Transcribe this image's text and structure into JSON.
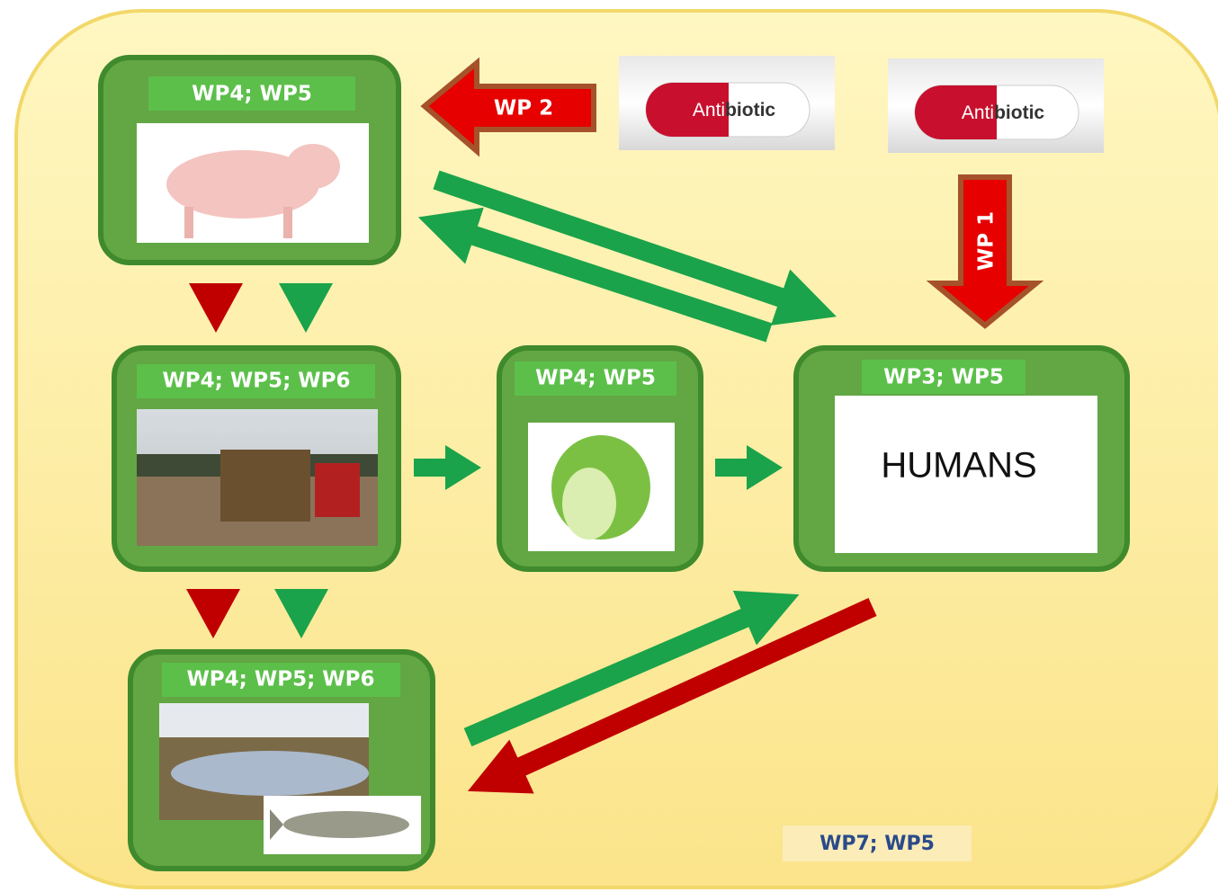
{
  "nodes": [
    {
      "label": "WP4; WP5"
    },
    {
      "label": "WP4; WP5; WP6"
    },
    {
      "label": "WP4; WP5"
    },
    {
      "label": "WP3; WP5",
      "text": "HUMANS"
    },
    {
      "label": "WP4; WP5; WP6"
    }
  ],
  "arrows": [
    {
      "label": "WP 2"
    },
    {
      "label": "WP 1"
    }
  ],
  "pills": [
    {
      "red_text": "Anti",
      "white_text": "biotic"
    },
    {
      "red_text": "Anti",
      "white_text": "biotic"
    }
  ],
  "footer": "WP7; WP5"
}
